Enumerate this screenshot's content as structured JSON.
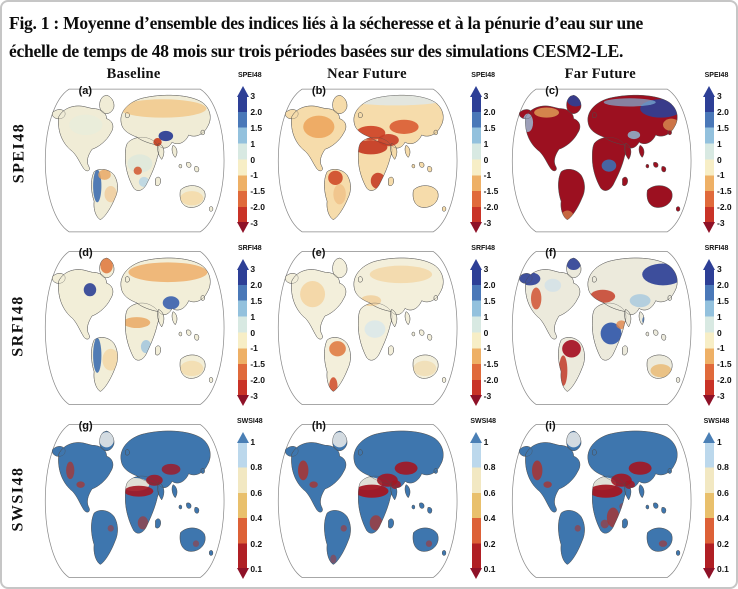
{
  "figure": {
    "caption_line1": "Fig. 1 : Moyenne d’ensemble des indices liés à la sécheresse et à la pénurie d’eau sur une",
    "caption_line2": "échelle de temps de 48 mois sur trois périodes basées sur des simulations CESM2-LE."
  },
  "columns": [
    "Baseline",
    "Near Future",
    "Far Future"
  ],
  "colorbars": {
    "spei": {
      "title": "SPEI48",
      "ticks": [
        "3",
        "2.0",
        "1.5",
        "1",
        "0",
        "-1",
        "-1.5",
        "-2.0",
        "-3"
      ],
      "segments": [
        "#2d3f96",
        "#4a78b8",
        "#93c1dd",
        "#d8e9e2",
        "#f7eec6",
        "#eeb066",
        "#e06a3b",
        "#c93327"
      ],
      "arrow_top": "#2d3f96",
      "arrow_bottom": "#8e1127"
    },
    "srfi": {
      "title": "SRFI48",
      "ticks": [
        "3",
        "2.0",
        "1.5",
        "1",
        "0",
        "-1",
        "-1.5",
        "-2.0",
        "-3"
      ],
      "segments": [
        "#2d3f96",
        "#4a78b8",
        "#93c1dd",
        "#d8e9e2",
        "#f7eec6",
        "#eeb066",
        "#e06a3b",
        "#c93327"
      ],
      "arrow_top": "#2d3f96",
      "arrow_bottom": "#8e1127"
    },
    "swsi": {
      "title": "SWSI48",
      "ticks": [
        "1",
        "0.8",
        "0.6",
        "0.4",
        "0.2",
        "0.1"
      ],
      "segments": [
        "#bcd8ec",
        "#f2e8c2",
        "#e9c06c",
        "#dd6137",
        "#b01f24"
      ],
      "arrow_top": "#4a7fb5",
      "arrow_bottom": "#8e1127"
    }
  },
  "rows": [
    {
      "label": "SPEI48",
      "colorbar": "spei",
      "panels": [
        {
          "letter": "(a)",
          "period": "Baseline",
          "base": "#f0ecd6",
          "blobs": [
            [
              120,
              24,
              42,
              9,
              "#f2c98b",
              0.85
            ],
            [
              46,
              40,
              16,
              10,
              "#e9edda",
              0.9
            ],
            [
              123,
              51,
              7,
              5,
              "#2e4096",
              0.95
            ],
            [
              115,
              57,
              4,
              4,
              "#c94426",
              0.95
            ],
            [
              57,
              100,
              4,
              16,
              "#3f6fb0",
              0.9
            ],
            [
              64,
              89,
              6,
              5,
              "#e8a55f",
              0.8
            ],
            [
              98,
              78,
              12,
              9,
              "#dfe9dc",
              0.9
            ],
            [
              96,
              85,
              4,
              4,
              "#d2572f",
              0.85
            ],
            [
              102,
              96,
              5,
              5,
              "#b9d6e4",
              0.85
            ],
            [
              148,
              112,
              11,
              7,
              "#f4dcab",
              0.9
            ],
            [
              70,
              108,
              6,
              8,
              "#f0c187",
              0.6
            ]
          ]
        },
        {
          "letter": "(b)",
          "period": "Near Future",
          "base": "#f6dcab",
          "blobs": [
            [
              46,
              42,
              15,
              11,
              "#eda65e",
              0.9
            ],
            [
              120,
              16,
              45,
              5,
              "#dfe8ec",
              0.8
            ],
            [
              96,
              48,
              14,
              7,
              "#d0482a",
              0.95
            ],
            [
              96,
              62,
              16,
              7,
              "#c63d26",
              0.95
            ],
            [
              113,
              55,
              10,
              6,
              "#c63d26",
              0.9
            ],
            [
              128,
              42,
              14,
              7,
              "#da5c33",
              0.9
            ],
            [
              103,
              95,
              7,
              8,
              "#c63d26",
              0.9
            ],
            [
              62,
              92,
              7,
              7,
              "#cf4a28",
              0.9
            ],
            [
              66,
              108,
              6,
              10,
              "#f0c187",
              0.8
            ]
          ]
        },
        {
          "letter": "(c)",
          "period": "Far Future",
          "base": "#9c1020",
          "blobs": [
            [
              150,
              24,
              20,
              9,
              "#2e4096",
              0.9
            ],
            [
              68,
              16,
              8,
              6,
              "#2e4096",
              0.9
            ],
            [
              120,
              18,
              25,
              4,
              "#7fb2d6",
              0.7
            ],
            [
              100,
              80,
              7,
              6,
              "#3f6fb0",
              0.9
            ],
            [
              124,
              50,
              6,
              4,
              "#8fc0dc",
              0.8
            ],
            [
              140,
              72,
              6,
              5,
              "#3f6fb0",
              0.8
            ],
            [
              22,
              38,
              5,
              9,
              "#9cc3de",
              0.8
            ],
            [
              40,
              28,
              12,
              5,
              "#e2a158",
              0.8
            ],
            [
              160,
              40,
              8,
              6,
              "#e2a158",
              0.7
            ],
            [
              60,
              130,
              6,
              6,
              "#e2a158",
              0.6
            ]
          ]
        }
      ]
    },
    {
      "label": "SRFI48",
      "colorbar": "srfi",
      "panels": [
        {
          "letter": "(d)",
          "period": "Baseline",
          "base": "#f2eed8",
          "blobs": [
            [
              125,
              24,
              38,
              9,
              "#efae6a",
              0.85
            ],
            [
              66,
              18,
              6,
              7,
              "#e07c44",
              0.9
            ],
            [
              50,
              40,
              6,
              6,
              "#2e4096",
              0.9
            ],
            [
              128,
              52,
              8,
              6,
              "#3a5fae",
              0.9
            ],
            [
              57,
              100,
              4,
              16,
              "#3f6fb0",
              0.9
            ],
            [
              95,
              70,
              13,
              5,
              "#e8a45c",
              0.8
            ],
            [
              104,
              92,
              5,
              6,
              "#9cc3de",
              0.8
            ],
            [
              70,
              104,
              8,
              10,
              "#f3d6a4",
              0.8
            ],
            [
              148,
              112,
              11,
              7,
              "#f3dcae",
              0.85
            ]
          ]
        },
        {
          "letter": "(e)",
          "period": "Near Future",
          "base": "#f3efdb",
          "blobs": [
            [
              40,
              44,
              12,
              12,
              "#f3d3a0",
              0.85
            ],
            [
              125,
              26,
              30,
              8,
              "#f3d6a4",
              0.8
            ],
            [
              96,
              50,
              10,
              5,
              "#f0c98f",
              0.7
            ],
            [
              64,
              94,
              8,
              7,
              "#e07c44",
              0.9
            ],
            [
              60,
              128,
              4,
              8,
              "#cf4a28",
              0.85
            ],
            [
              100,
              76,
              10,
              8,
              "#d9e8ea",
              0.85
            ],
            [
              148,
              112,
              11,
              7,
              "#f0dcb2",
              0.8
            ]
          ]
        },
        {
          "letter": "(f)",
          "period": "Far Future",
          "base": "#eceadc",
          "blobs": [
            [
              152,
              26,
              20,
              10,
              "#2e4096",
              0.92
            ],
            [
              24,
              30,
              10,
              6,
              "#2e4096",
              0.9
            ],
            [
              66,
              16,
              7,
              6,
              "#2e4096",
              0.9
            ],
            [
              46,
              36,
              8,
              6,
              "#cfe0ea",
              0.7
            ],
            [
              102,
              80,
              10,
              10,
              "#2f55a8",
              0.9
            ],
            [
              140,
              68,
              8,
              6,
              "#3f6fb0",
              0.85
            ],
            [
              130,
              50,
              10,
              6,
              "#9cc3de",
              0.7
            ],
            [
              64,
              94,
              9,
              8,
              "#a50f22",
              0.92
            ],
            [
              56,
              114,
              4,
              14,
              "#c23a28",
              0.85
            ],
            [
              94,
              46,
              12,
              6,
              "#c5402a",
              0.85
            ],
            [
              30,
              48,
              5,
              10,
              "#cf4a28",
              0.8
            ],
            [
              112,
              72,
              5,
              4,
              "#e0854a",
              0.8
            ],
            [
              150,
              114,
              10,
              6,
              "#eab061",
              0.7
            ]
          ]
        }
      ]
    },
    {
      "label": "SWSI48",
      "colorbar": "swsi",
      "panels": [
        {
          "letter": "(g)",
          "period": "Baseline",
          "base": "#3e76ae",
          "blobs": [
            [
              66,
              19,
              7,
              7,
              "#dbe0e4",
              0.95
            ],
            [
              93,
              60,
              14,
              6,
              "#f2ecda",
              0.9
            ],
            [
              97,
              66,
              14,
              5,
              "#a31622",
              0.9
            ],
            [
              112,
              56,
              8,
              5,
              "#a31622",
              0.85
            ],
            [
              128,
              46,
              9,
              5,
              "#a31622",
              0.8
            ],
            [
              31,
              47,
              4,
              8,
              "#b03028",
              0.7
            ],
            [
              41,
              60,
              4,
              3,
              "#b03028",
              0.7
            ],
            [
              101,
              95,
              5,
              6,
              "#b03028",
              0.6
            ],
            [
              70,
              100,
              3,
              3,
              "#b03028",
              0.5
            ],
            [
              152,
              114,
              3,
              3,
              "#b03028",
              0.5
            ]
          ]
        },
        {
          "letter": "(h)",
          "period": "Near Future",
          "base": "#3e76ae",
          "blobs": [
            [
              66,
              19,
              7,
              7,
              "#dbe0e4",
              0.95
            ],
            [
              93,
              59,
              14,
              6,
              "#f2ecda",
              0.9
            ],
            [
              97,
              66,
              16,
              6,
              "#a31622",
              0.95
            ],
            [
              112,
              56,
              10,
              6,
              "#a31622",
              0.9
            ],
            [
              130,
              45,
              11,
              6,
              "#a31622",
              0.9
            ],
            [
              120,
              60,
              5,
              4,
              "#a31622",
              0.85
            ],
            [
              31,
              47,
              5,
              9,
              "#b03028",
              0.8
            ],
            [
              41,
              60,
              4,
              3,
              "#b03028",
              0.75
            ],
            [
              101,
              95,
              6,
              7,
              "#b03028",
              0.7
            ],
            [
              70,
              100,
              3,
              3,
              "#b03028",
              0.55
            ],
            [
              152,
              114,
              3,
              3,
              "#b03028",
              0.55
            ],
            [
              60,
              128,
              3,
              4,
              "#b03028",
              0.5
            ]
          ]
        },
        {
          "letter": "(i)",
          "period": "Far Future",
          "base": "#3e76ae",
          "blobs": [
            [
              66,
              19,
              7,
              7,
              "#dbe0e4",
              0.95
            ],
            [
              93,
              59,
              14,
              6,
              "#f2ecda",
              0.9
            ],
            [
              97,
              66,
              16,
              6,
              "#a31622",
              0.95
            ],
            [
              112,
              56,
              10,
              6,
              "#a31622",
              0.9
            ],
            [
              130,
              45,
              11,
              6,
              "#a31622",
              0.9
            ],
            [
              120,
              60,
              5,
              4,
              "#a31622",
              0.85
            ],
            [
              31,
              47,
              5,
              9,
              "#b03028",
              0.8
            ],
            [
              41,
              60,
              4,
              3,
              "#b03028",
              0.75
            ],
            [
              104,
              90,
              6,
              9,
              "#b03028",
              0.75
            ],
            [
              96,
              96,
              4,
              4,
              "#b03028",
              0.6
            ],
            [
              70,
              100,
              3,
              3,
              "#b03028",
              0.55
            ],
            [
              152,
              114,
              4,
              3,
              "#b03028",
              0.6
            ],
            [
              113,
              80,
              3,
              3,
              "#b03028",
              0.5
            ]
          ]
        }
      ]
    }
  ]
}
